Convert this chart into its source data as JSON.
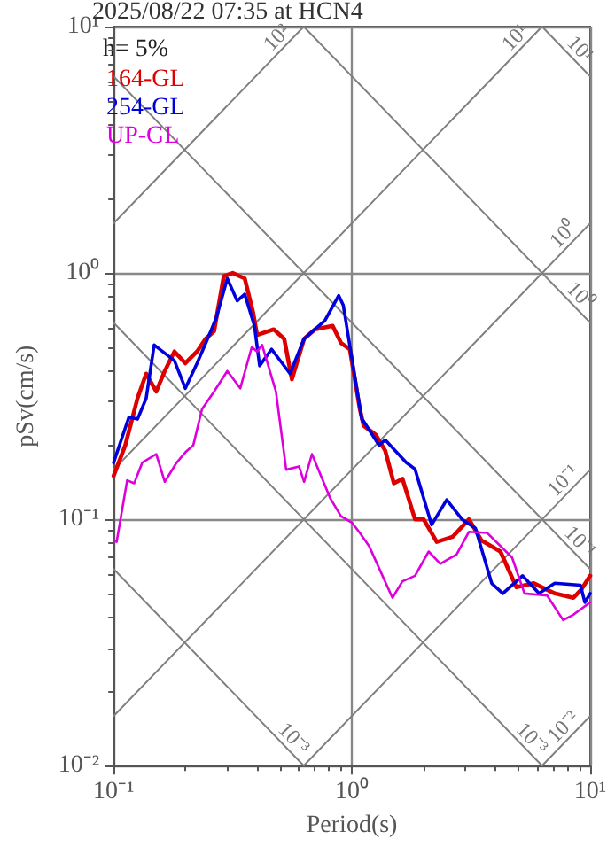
{
  "chart_data": {
    "type": "line",
    "title": "2025/08/22 07:35 at HCN4",
    "xlabel": "Period(s)",
    "ylabel": "pSv(cm/s)",
    "log": "xy",
    "grid": true,
    "legend": "top left",
    "line_style": "solid",
    "marker": "none",
    "xlim": [
      0.1,
      10
    ],
    "ylim": [
      0.01,
      10
    ],
    "xticks": [
      {
        "value": 0.1,
        "label": "10⁻¹"
      },
      {
        "value": 1,
        "label": "10⁰"
      },
      {
        "value": 10,
        "label": "10¹"
      }
    ],
    "yticks": [
      {
        "value": 0.01,
        "label": "10⁻²"
      },
      {
        "value": 0.1,
        "label": "10⁻¹"
      },
      {
        "value": 1,
        "label": "10⁰"
      },
      {
        "value": 10,
        "label": "10¹"
      }
    ],
    "series": [
      {
        "name": "164-GL",
        "color": "#dd0000",
        "x": [
          0.1,
          0.112,
          0.126,
          0.137,
          0.151,
          0.164,
          0.18,
          0.2,
          0.224,
          0.243,
          0.264,
          0.29,
          0.316,
          0.355,
          0.385,
          0.4,
          0.47,
          0.52,
          0.56,
          0.63,
          0.7,
          0.83,
          0.9,
          0.98,
          1.08,
          1.12,
          1.26,
          1.38,
          1.5,
          1.63,
          1.84,
          2.0,
          2.27,
          2.65,
          3.1,
          3.5,
          4.2,
          4.9,
          5.8,
          7.1,
          8.5,
          9.2,
          10
        ],
        "values": [
          0.15,
          0.2,
          0.31,
          0.39,
          0.33,
          0.4,
          0.48,
          0.43,
          0.48,
          0.54,
          0.58,
          0.97,
          1.0,
          0.95,
          0.69,
          0.56,
          0.59,
          0.54,
          0.37,
          0.54,
          0.59,
          0.61,
          0.52,
          0.49,
          0.28,
          0.24,
          0.22,
          0.19,
          0.14,
          0.146,
          0.1,
          0.1,
          0.081,
          0.085,
          0.1,
          0.082,
          0.074,
          0.053,
          0.055,
          0.05,
          0.048,
          0.052,
          0.059
        ]
      },
      {
        "name": "254-GL",
        "color": "#0000dd",
        "x": [
          0.1,
          0.116,
          0.126,
          0.137,
          0.148,
          0.17,
          0.18,
          0.2,
          0.224,
          0.25,
          0.27,
          0.3,
          0.33,
          0.355,
          0.39,
          0.41,
          0.46,
          0.51,
          0.55,
          0.63,
          0.77,
          0.88,
          0.92,
          1.1,
          1.12,
          1.3,
          1.38,
          1.69,
          1.84,
          2.16,
          2.5,
          2.9,
          3.3,
          3.86,
          4.3,
          5.2,
          6.1,
          7.1,
          9.1,
          9.5,
          10
        ],
        "values": [
          0.17,
          0.26,
          0.255,
          0.31,
          0.51,
          0.46,
          0.44,
          0.34,
          0.43,
          0.55,
          0.66,
          0.95,
          0.77,
          0.82,
          0.61,
          0.42,
          0.49,
          0.43,
          0.39,
          0.54,
          0.64,
          0.81,
          0.74,
          0.255,
          0.25,
          0.2,
          0.21,
          0.17,
          0.16,
          0.095,
          0.12,
          0.1,
          0.092,
          0.055,
          0.05,
          0.059,
          0.05,
          0.055,
          0.054,
          0.046,
          0.05
        ]
      },
      {
        "name": "UP-GL",
        "color": "#dd00dd",
        "x": [
          0.1,
          0.103,
          0.114,
          0.122,
          0.132,
          0.151,
          0.164,
          0.184,
          0.2,
          0.216,
          0.235,
          0.264,
          0.3,
          0.34,
          0.38,
          0.4,
          0.42,
          0.48,
          0.53,
          0.6,
          0.63,
          0.68,
          0.81,
          0.9,
          1.0,
          1.08,
          1.18,
          1.48,
          1.63,
          1.84,
          2.1,
          2.35,
          2.75,
          3.1,
          3.7,
          4.7,
          5.3,
          6.6,
          7.7,
          8.5,
          10
        ],
        "values": [
          0.082,
          0.081,
          0.144,
          0.14,
          0.17,
          0.184,
          0.142,
          0.17,
          0.187,
          0.2,
          0.28,
          0.33,
          0.4,
          0.34,
          0.5,
          0.48,
          0.51,
          0.33,
          0.159,
          0.164,
          0.142,
          0.184,
          0.122,
          0.103,
          0.097,
          0.088,
          0.078,
          0.048,
          0.056,
          0.059,
          0.074,
          0.066,
          0.072,
          0.089,
          0.088,
          0.07,
          0.05,
          0.049,
          0.039,
          0.041,
          0.046
        ]
      },
      {
        "name": "10²",
        "color": "#808080",
        "x": [
          0.1,
          0.628
        ],
        "values": [
          1.59,
          10
        ]
      },
      {
        "name": "10¹",
        "color": "#808080",
        "x": [
          0.1,
          6.28
        ],
        "values": [
          0.159,
          10
        ]
      },
      {
        "name": "10⁰",
        "color": "#808080",
        "x": [
          0.1,
          10
        ],
        "values": [
          0.0159,
          1.59
        ]
      },
      {
        "name": "10⁻¹",
        "color": "#808080",
        "x": [
          0.628,
          10
        ],
        "values": [
          0.01,
          0.159
        ]
      },
      {
        "name": "10⁻²",
        "color": "#808080",
        "x": [
          6.28,
          10
        ],
        "values": [
          0.01,
          0.0159
        ]
      },
      {
        "name": "10⁻¹",
        "color": "#808080",
        "x": [
          0.1,
          10
        ],
        "values": [
          6.28,
          0.0628
        ]
      },
      {
        "name": "10⁰",
        "color": "#808080",
        "x": [
          0.628,
          10
        ],
        "values": [
          10,
          0.628
        ]
      },
      {
        "name": "10¹",
        "color": "#808080",
        "x": [
          6.28,
          10
        ],
        "values": [
          10,
          6.28
        ]
      },
      {
        "name": "10⁻³",
        "color": "#808080",
        "x": [
          0.1,
          6.28
        ],
        "values": [
          0.628,
          0.01
        ]
      },
      {
        "name": "10⁻³",
        "color": "#808080",
        "x": [
          0.1,
          0.628
        ],
        "values": [
          0.0628,
          0.01
        ]
      }
    ],
    "annotations": [
      "h= 5%"
    ]
  }
}
